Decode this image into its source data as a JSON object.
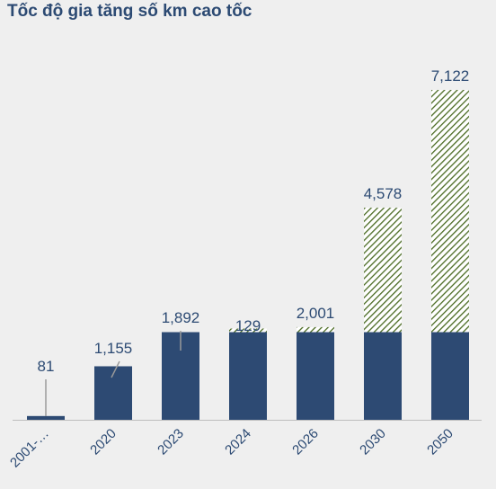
{
  "chart_data": {
    "type": "bar",
    "title": "Tốc độ gia tăng số km cao tốc",
    "categories": [
      "2001-…",
      "2020",
      "2023",
      "2024",
      "2026",
      "2030",
      "2050"
    ],
    "labels": [
      "81",
      "1,155",
      "1,892",
      "129",
      "2,001",
      "4,578",
      "7,122"
    ],
    "series": [
      {
        "values": [
          81,
          1155,
          1892,
          0,
          0,
          0,
          0
        ]
      },
      {
        "values": [
          0,
          0,
          0,
          129,
          2001,
          4578,
          7122
        ]
      }
    ],
    "ylim": [
      0,
      7122
    ],
    "grid": false,
    "colors": {
      "built": "#2d4a73",
      "planned": "#4a6a22",
      "axis": "#bdbdbd",
      "leader": "#9a9a9a"
    }
  }
}
